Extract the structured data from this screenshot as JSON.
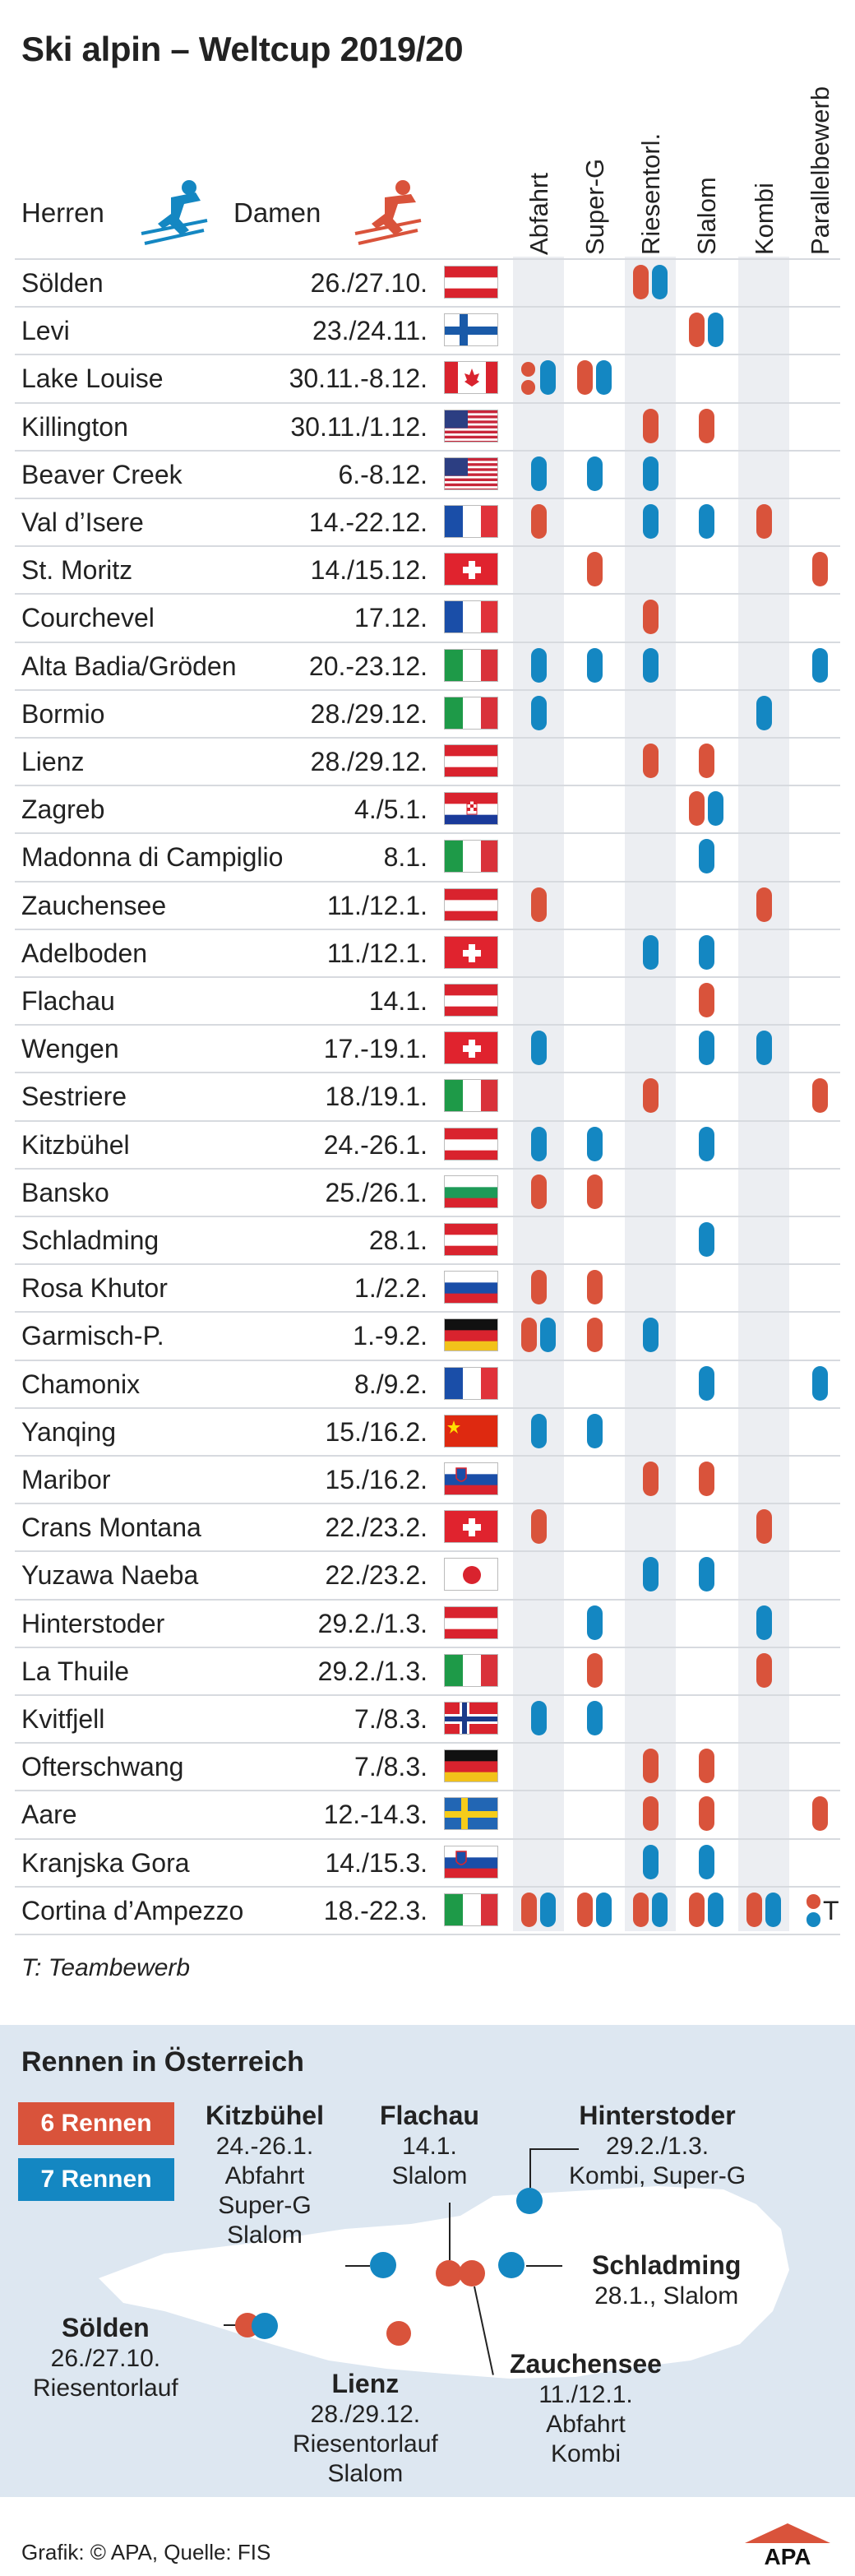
{
  "title": "Ski alpin – Weltcup 2019/20",
  "legend": {
    "men": "Herren",
    "women": "Damen"
  },
  "columns": [
    "Abfahrt",
    "Super-G",
    "Riesentorl.",
    "Slalom",
    "Kombi",
    "Parallelbewerb"
  ],
  "colors": {
    "women": "#d9533b",
    "men": "#1487c2",
    "band": "#eceef2",
    "map_bg": "#dde7f1"
  },
  "races": [
    {
      "venue": "Sölden",
      "date": "26./27.10.",
      "flag": "AUT",
      "events": [
        [],
        [],
        [
          "r",
          "b"
        ],
        [],
        [],
        []
      ]
    },
    {
      "venue": "Levi",
      "date": "23./24.11.",
      "flag": "FIN",
      "events": [
        [],
        [],
        [],
        [
          "r",
          "b"
        ],
        [],
        []
      ]
    },
    {
      "venue": "Lake Louise",
      "date": "30.11.-8.12.",
      "flag": "CAN",
      "events": [
        [
          "rr",
          "b"
        ],
        [
          "r",
          "b"
        ],
        [],
        [],
        [],
        []
      ]
    },
    {
      "venue": "Killington",
      "date": "30.11./1.12.",
      "flag": "USA",
      "events": [
        [],
        [],
        [
          "r"
        ],
        [
          "r"
        ],
        [],
        []
      ]
    },
    {
      "venue": "Beaver Creek",
      "date": "6.-8.12.",
      "flag": "USA",
      "events": [
        [
          "b"
        ],
        [
          "b"
        ],
        [
          "b"
        ],
        [],
        [],
        []
      ]
    },
    {
      "venue": "Val d’Isere",
      "date": "14.-22.12.",
      "flag": "FRA",
      "events": [
        [
          "r"
        ],
        [],
        [
          "b"
        ],
        [
          "b"
        ],
        [
          "r"
        ],
        []
      ]
    },
    {
      "venue": "St. Moritz",
      "date": "14./15.12.",
      "flag": "SUI",
      "events": [
        [],
        [
          "r"
        ],
        [],
        [],
        [],
        [
          "r"
        ]
      ]
    },
    {
      "venue": "Courchevel",
      "date": "17.12.",
      "flag": "FRA",
      "events": [
        [],
        [],
        [
          "r"
        ],
        [],
        [],
        []
      ]
    },
    {
      "venue": "Alta Badia/Gröden",
      "date": "20.-23.12.",
      "flag": "ITA",
      "events": [
        [
          "b"
        ],
        [
          "b"
        ],
        [
          "b"
        ],
        [],
        [],
        [
          "b"
        ]
      ]
    },
    {
      "venue": "Bormio",
      "date": "28./29.12.",
      "flag": "ITA",
      "events": [
        [
          "b"
        ],
        [],
        [],
        [],
        [
          "b"
        ],
        []
      ]
    },
    {
      "venue": "Lienz",
      "date": "28./29.12.",
      "flag": "AUT",
      "events": [
        [],
        [],
        [
          "r"
        ],
        [
          "r"
        ],
        [],
        []
      ]
    },
    {
      "venue": "Zagreb",
      "date": "4./5.1.",
      "flag": "CRO",
      "events": [
        [],
        [],
        [],
        [
          "r",
          "b"
        ],
        [],
        []
      ]
    },
    {
      "venue": "Madonna di Campiglio",
      "date": "8.1.",
      "flag": "ITA",
      "events": [
        [],
        [],
        [],
        [
          "b"
        ],
        [],
        []
      ]
    },
    {
      "venue": "Zauchensee",
      "date": "11./12.1.",
      "flag": "AUT",
      "events": [
        [
          "r"
        ],
        [],
        [],
        [],
        [
          "r"
        ],
        []
      ]
    },
    {
      "venue": "Adelboden",
      "date": "11./12.1.",
      "flag": "SUI",
      "events": [
        [],
        [],
        [
          "b"
        ],
        [
          "b"
        ],
        [],
        []
      ]
    },
    {
      "venue": "Flachau",
      "date": "14.1.",
      "flag": "AUT",
      "events": [
        [],
        [],
        [],
        [
          "r"
        ],
        [],
        []
      ]
    },
    {
      "venue": "Wengen",
      "date": "17.-19.1.",
      "flag": "SUI",
      "events": [
        [
          "b"
        ],
        [],
        [],
        [
          "b"
        ],
        [
          "b"
        ],
        []
      ]
    },
    {
      "venue": "Sestriere",
      "date": "18./19.1.",
      "flag": "ITA",
      "events": [
        [],
        [],
        [
          "r"
        ],
        [],
        [],
        [
          "r"
        ]
      ]
    },
    {
      "venue": "Kitzbühel",
      "date": "24.-26.1.",
      "flag": "AUT",
      "events": [
        [
          "b"
        ],
        [
          "b"
        ],
        [],
        [
          "b"
        ],
        [],
        []
      ]
    },
    {
      "venue": "Bansko",
      "date": "25./26.1.",
      "flag": "BUL",
      "events": [
        [
          "r"
        ],
        [
          "r"
        ],
        [],
        [],
        [],
        []
      ]
    },
    {
      "venue": "Schladming",
      "date": "28.1.",
      "flag": "AUT",
      "events": [
        [],
        [],
        [],
        [
          "b"
        ],
        [],
        []
      ]
    },
    {
      "venue": "Rosa Khutor",
      "date": "1./2.2.",
      "flag": "RUS",
      "events": [
        [
          "r"
        ],
        [
          "r"
        ],
        [],
        [],
        [],
        []
      ]
    },
    {
      "venue": "Garmisch-P.",
      "date": "1.-9.2.",
      "flag": "GER",
      "events": [
        [
          "r",
          "b"
        ],
        [
          "r"
        ],
        [
          "b"
        ],
        [],
        [],
        []
      ]
    },
    {
      "venue": "Chamonix",
      "date": "8./9.2.",
      "flag": "FRA",
      "events": [
        [],
        [],
        [],
        [
          "b"
        ],
        [],
        [
          "b"
        ]
      ]
    },
    {
      "venue": "Yanqing",
      "date": "15./16.2.",
      "flag": "CHN",
      "events": [
        [
          "b"
        ],
        [
          "b"
        ],
        [],
        [],
        [],
        []
      ]
    },
    {
      "venue": "Maribor",
      "date": "15./16.2.",
      "flag": "SLO",
      "events": [
        [],
        [],
        [
          "r"
        ],
        [
          "r"
        ],
        [],
        []
      ]
    },
    {
      "venue": "Crans Montana",
      "date": "22./23.2.",
      "flag": "SUI",
      "events": [
        [
          "r"
        ],
        [],
        [],
        [],
        [
          "r"
        ],
        []
      ]
    },
    {
      "venue": "Yuzawa Naeba",
      "date": "22./23.2.",
      "flag": "JPN",
      "events": [
        [],
        [],
        [
          "b"
        ],
        [
          "b"
        ],
        [],
        []
      ]
    },
    {
      "venue": "Hinterstoder",
      "date": "29.2./1.3.",
      "flag": "AUT",
      "events": [
        [],
        [
          "b"
        ],
        [],
        [],
        [
          "b"
        ],
        []
      ]
    },
    {
      "venue": "La Thuile",
      "date": "29.2./1.3.",
      "flag": "ITA",
      "events": [
        [],
        [
          "r"
        ],
        [],
        [],
        [
          "r"
        ],
        []
      ]
    },
    {
      "venue": "Kvitfjell",
      "date": "7./8.3.",
      "flag": "NOR",
      "events": [
        [
          "b"
        ],
        [
          "b"
        ],
        [],
        [],
        [],
        []
      ]
    },
    {
      "venue": "Ofterschwang",
      "date": "7./8.3.",
      "flag": "GER",
      "events": [
        [],
        [],
        [
          "r"
        ],
        [
          "r"
        ],
        [],
        []
      ]
    },
    {
      "venue": "Aare",
      "date": "12.-14.3.",
      "flag": "SWE",
      "events": [
        [],
        [],
        [
          "r"
        ],
        [
          "r"
        ],
        [],
        [
          "r"
        ]
      ]
    },
    {
      "venue": "Kranjska Gora",
      "date": "14./15.3.",
      "flag": "SLO",
      "events": [
        [],
        [],
        [
          "b"
        ],
        [
          "b"
        ],
        [],
        []
      ]
    },
    {
      "venue": "Cortina d’Ampezzo",
      "date": "18.-22.3.",
      "flag": "ITA",
      "events": [
        [
          "r",
          "b"
        ],
        [
          "r",
          "b"
        ],
        [
          "r",
          "b"
        ],
        [
          "r",
          "b"
        ],
        [
          "r",
          "b"
        ],
        [
          "team"
        ]
      ]
    }
  ],
  "team_marker": "T",
  "team_note": "T: Teambewerb",
  "austria": {
    "title": "Rennen in Österreich",
    "women_count": "6 Rennen",
    "men_count": "7 Rennen",
    "labels": [
      {
        "id": "kitzbuehel",
        "name": "Kitzbühel",
        "lines": [
          "24.-26.1.",
          "Abfahrt",
          "Super-G",
          "Slalom"
        ]
      },
      {
        "id": "flachau",
        "name": "Flachau",
        "lines": [
          "14.1.",
          "Slalom"
        ]
      },
      {
        "id": "hinterstoder",
        "name": "Hinterstoder",
        "lines": [
          "29.2./1.3.",
          "Kombi, Super-G"
        ]
      },
      {
        "id": "schladming",
        "name": "Schladming",
        "lines": [
          "28.1., Slalom"
        ]
      },
      {
        "id": "soelden",
        "name": "Sölden",
        "lines": [
          "26./27.10.",
          "Riesentorlauf"
        ]
      },
      {
        "id": "lienz",
        "name": "Lienz",
        "lines": [
          "28./29.12.",
          "Riesentorlauf",
          "Slalom"
        ]
      },
      {
        "id": "zauchensee",
        "name": "Zauchensee",
        "lines": [
          "11./12.1.",
          "Abfahrt",
          "Kombi"
        ]
      }
    ]
  },
  "footer": "Grafik: © APA, Quelle: FIS",
  "logo": "APA"
}
